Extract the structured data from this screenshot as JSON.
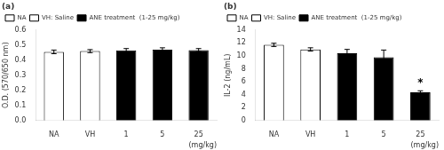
{
  "chart_data": [
    {
      "type": "bar",
      "title": "(a)",
      "ylabel": "O.D. (570/650 nm)",
      "xlabel": "(mg/kg)",
      "categories": [
        "NA",
        "VH",
        "1",
        "5",
        "25"
      ],
      "series": [
        {
          "name": "NA",
          "color": "white",
          "values": [
            0.455,
            null,
            null,
            null,
            null
          ],
          "errors": [
            0.012,
            null,
            null,
            null,
            null
          ]
        },
        {
          "name": "VH: Saline",
          "color": "white",
          "values": [
            null,
            0.46,
            null,
            null,
            null
          ],
          "errors": [
            null,
            0.01,
            null,
            null,
            null
          ]
        },
        {
          "name": "ANE treatment  (1-25 mg/kg)",
          "color": "black",
          "values": [
            null,
            null,
            0.465,
            0.47,
            0.467
          ],
          "errors": [
            null,
            null,
            0.012,
            0.012,
            0.01
          ]
        }
      ],
      "ylim": [
        0.0,
        0.6
      ],
      "yticks": [
        {
          "value": 0.0,
          "label": "0.0"
        },
        0.1,
        0.2,
        0.3,
        0.4,
        0.5,
        0.6
      ],
      "grid": false,
      "legend": "top"
    },
    {
      "type": "bar",
      "title": "(b)",
      "ylabel": "IL-2 (ng/mL)",
      "xlabel": "(mg/kg)",
      "categories": [
        "NA",
        "VH",
        "1",
        "5",
        "25"
      ],
      "series": [
        {
          "name": "NA",
          "color": "white",
          "values": [
            11.7,
            null,
            null,
            null,
            null
          ],
          "errors": [
            0.25,
            null,
            null,
            null,
            null
          ]
        },
        {
          "name": "VH: Saline",
          "color": "white",
          "values": [
            null,
            11.0,
            null,
            null,
            null
          ],
          "errors": [
            null,
            0.25,
            null,
            null,
            null
          ]
        },
        {
          "name": "ANE treatment  (1-25 mg/kg)",
          "color": "black",
          "values": [
            null,
            null,
            10.4,
            9.8,
            4.35
          ],
          "errors": [
            null,
            null,
            0.6,
            1.1,
            0.25
          ]
        }
      ],
      "ylim": [
        0,
        14
      ],
      "yticks": [
        0,
        2,
        4,
        6,
        8,
        10,
        12,
        14
      ],
      "annotations": [
        {
          "x": "25",
          "text": "*"
        }
      ],
      "grid": false,
      "legend": "top"
    }
  ]
}
